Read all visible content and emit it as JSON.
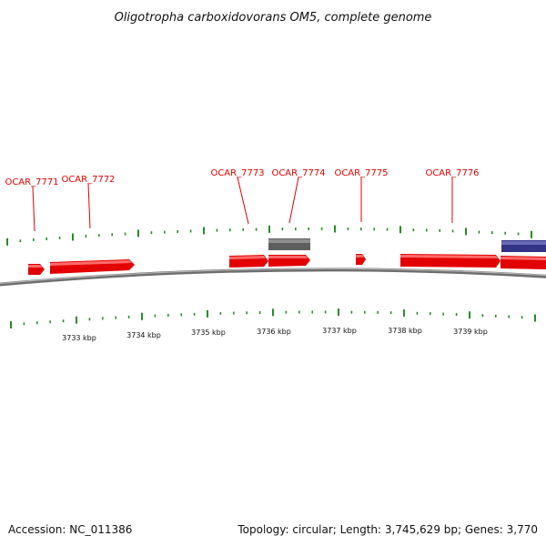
{
  "title": "Oligotropha carboxidovorans OM5, complete genome",
  "footer": {
    "accession": "Accession: NC_011386",
    "summary": "Topology: circular; Length: 3,745,629 bp; Genes: 3,770"
  },
  "colors": {
    "forward_gene": "#ee0000",
    "reverse_gene_gray": "#666666",
    "reverse_gene_blue": "#3a3a90",
    "backbone": "#8a8a8a",
    "tick": "#2a8a2a",
    "label": "#e00000"
  },
  "gene_labels": [
    {
      "name": "OCAR_7771"
    },
    {
      "name": "OCAR_7772"
    },
    {
      "name": "OCAR_7773"
    },
    {
      "name": "OCAR_7774"
    },
    {
      "name": "OCAR_7775"
    },
    {
      "name": "OCAR_7776"
    }
  ],
  "scale_labels": [
    "3733 kbp",
    "3734 kbp",
    "3735 kbp",
    "3736 kbp",
    "3737 kbp",
    "3738 kbp",
    "3739 kbp"
  ]
}
